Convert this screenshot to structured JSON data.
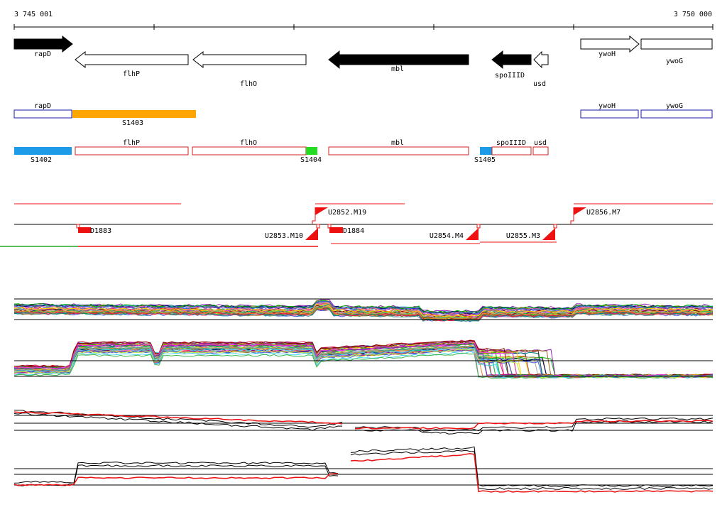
{
  "ruler": {
    "start_label": "3 745 001",
    "end_label": "3 750 000"
  },
  "genes": [
    {
      "label": "rapD",
      "filled": true,
      "dir": "right"
    },
    {
      "label": "flhP",
      "filled": false,
      "dir": "left"
    },
    {
      "label": "flhO",
      "filled": false,
      "dir": "left"
    },
    {
      "label": "mbl",
      "filled": true,
      "dir": "left"
    },
    {
      "label": "spoIIID",
      "filled": true,
      "dir": "left"
    },
    {
      "label": "usd",
      "filled": false,
      "dir": "left"
    },
    {
      "label": "ywoH",
      "filled": false,
      "dir": "right"
    },
    {
      "label": "ywoG",
      "filled": false,
      "dir": "right"
    }
  ],
  "track2": {
    "boxes": [
      "rapD",
      "ywoH",
      "ywoG"
    ],
    "segments": [
      {
        "label": "S1403",
        "color": "#ffa500"
      }
    ]
  },
  "track3": {
    "boxes": [
      "flhP",
      "flhO",
      "mbl",
      "spoIIID",
      "usd"
    ],
    "segments": [
      {
        "label": "S1402",
        "color": "#1e9be8"
      },
      {
        "label": "S1404",
        "color": "#22dd22"
      },
      {
        "label": "S1405",
        "color": "#1e9be8"
      }
    ]
  },
  "features": [
    {
      "label": "U2852.M19"
    },
    {
      "label": "U2856.M7"
    },
    {
      "label": "D1883"
    },
    {
      "label": "U2853.M10"
    },
    {
      "label": "D1884"
    },
    {
      "label": "U2854.M4"
    },
    {
      "label": "U2855.M3"
    }
  ],
  "colors": {
    "gene_outline": "#000000",
    "box_blue": "#1a1aa8",
    "box_red": "#cc2222",
    "feature_red": "#ee1111",
    "expr_series": [
      "#e6194b",
      "#3cb44b",
      "#4363d8",
      "#f58231",
      "#911eb4",
      "#42d4f4",
      "#f032e6",
      "#bfef45",
      "#469990",
      "#9a6324",
      "#800000",
      "#808000",
      "#000075",
      "#a9a9a9",
      "#ff69b4",
      "#008080",
      "#ffd700",
      "#00aa00"
    ]
  }
}
